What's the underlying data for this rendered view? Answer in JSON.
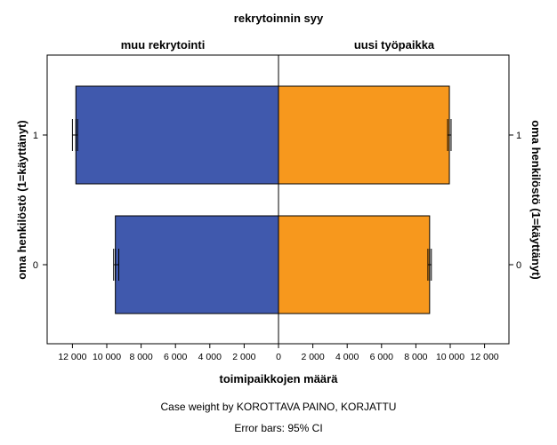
{
  "chart_data": {
    "type": "bar",
    "orientation": "horizontal",
    "layout": "population-pyramid",
    "title": "rekrytoinnin syy",
    "panels": [
      {
        "name": "muu rekrytointi",
        "side": "left"
      },
      {
        "name": "uusi työpaikka",
        "side": "right"
      }
    ],
    "categories": [
      "1",
      "0"
    ],
    "series": [
      {
        "name": "muu rekrytointi",
        "color": "#4059AD",
        "values": [
          11800,
          9500
        ],
        "ci": [
          [
            11700,
            12000
          ],
          [
            9300,
            9600
          ]
        ]
      },
      {
        "name": "uusi työpaikka",
        "color": "#F7981D",
        "values": [
          9950,
          8800
        ],
        "ci": [
          [
            9850,
            10050
          ],
          [
            8700,
            8900
          ]
        ]
      }
    ],
    "xlabel": "toimipaikkojen määrä",
    "ylabel_left": "oma henkilöstö (1=käyttänyt)",
    "ylabel_right": "oma henkilöstö (1=käyttänyt)",
    "xlim": [
      0,
      12000
    ],
    "xticks": [
      0,
      2000,
      4000,
      6000,
      8000,
      10000,
      12000
    ],
    "xtick_labels": [
      "0",
      "2 000",
      "4 000",
      "6 000",
      "8 000",
      "10 000",
      "12 000"
    ],
    "footnotes": [
      "Case weight by KOROTTAVA PAINO, KORJATTU",
      "Error bars: 95% CI"
    ],
    "grid": false,
    "legend": "none"
  }
}
